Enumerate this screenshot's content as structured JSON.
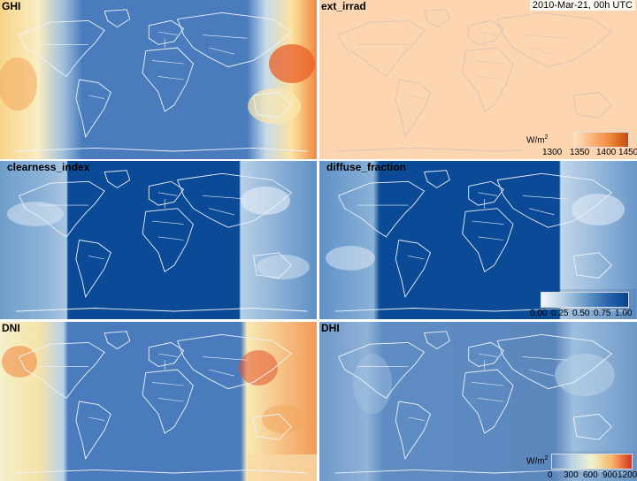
{
  "timestamp": "2010-Mar-21, 00h UTC",
  "panels": [
    {
      "id": "ghi",
      "title": "GHI"
    },
    {
      "id": "ext_irrad",
      "title": "ext_irrad"
    },
    {
      "id": "clearness_index",
      "title": "clearness_index"
    },
    {
      "id": "diffuse_fraction",
      "title": "diffuse_fraction"
    },
    {
      "id": "dni",
      "title": "DNI"
    },
    {
      "id": "dhi",
      "title": "DHI"
    }
  ],
  "legends": {
    "ext_irrad": {
      "unit_base": "W/m",
      "unit_sup": "2",
      "ticks": [
        "1300",
        "1350",
        "1400",
        "1450"
      ],
      "colors": [
        "#fde2c4",
        "#fbb57c",
        "#f08a3c",
        "#c44a10"
      ]
    },
    "fraction": {
      "ticks": [
        "0.00",
        "0.25",
        "0.50",
        "0.75",
        "1.00"
      ],
      "colors": [
        "#f4f8fc",
        "#b7cfe6",
        "#6a9cc9",
        "#2b68ad",
        "#08428f"
      ]
    },
    "irradiance": {
      "unit_base": "W/m",
      "unit_sup": "2",
      "ticks": [
        "0",
        "300",
        "600",
        "900",
        "1200"
      ],
      "colors": [
        "#5b87bd",
        "#b9d3e8",
        "#f2f2cf",
        "#f7b56a",
        "#d7301f"
      ]
    }
  },
  "colors": {
    "ocean_blue": "#4a7cbd",
    "night_blue": "#0b4a96",
    "peach": "#fdd5b0",
    "border_line": "#e8eef6"
  }
}
